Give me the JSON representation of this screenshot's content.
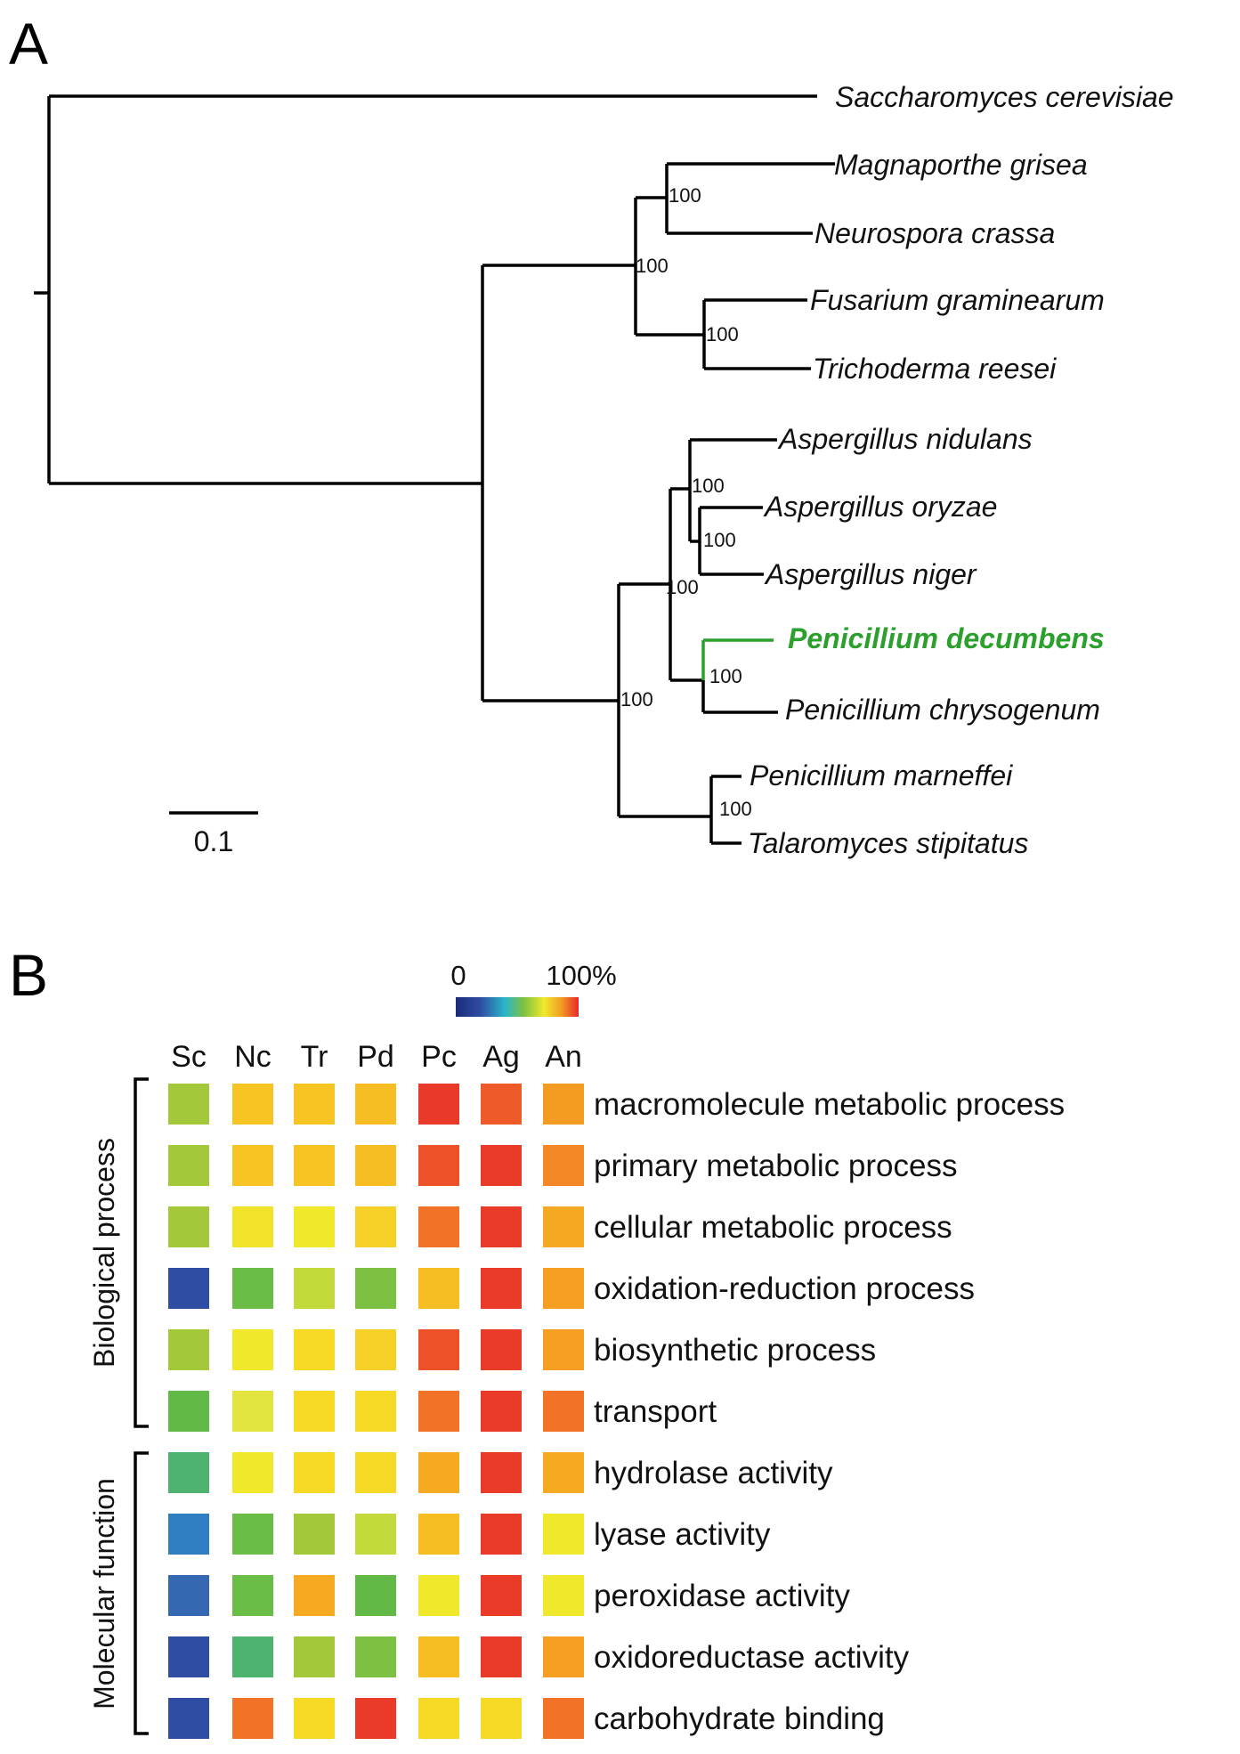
{
  "panels": [
    "A",
    "B"
  ],
  "tree": {
    "taxa": [
      "Saccharomyces cerevisiae",
      "Magnaporthe grisea",
      "Neurospora crassa",
      "Fusarium graminearum",
      "Trichoderma reesei",
      "Aspergillus nidulans",
      "Aspergillus oryzae",
      "Aspergillus niger",
      "Penicillium decumbens",
      "Penicillium chrysogenum",
      "Penicillium marneffei",
      "Talaromyces stipitatus"
    ],
    "highlight_taxon": "Penicillium decumbens",
    "highlight_color": "#2ca02c",
    "bootstrap": [
      "100",
      "100",
      "100",
      "100",
      "100",
      "100",
      "100",
      "100",
      "100"
    ],
    "scale_label": "0.1"
  },
  "heatmap": {
    "colorbar": {
      "min_label": "0",
      "max_label": "100%"
    },
    "columns": [
      "Sc",
      "Nc",
      "Tr",
      "Pd",
      "Pc",
      "Ag",
      "An"
    ],
    "groups": [
      {
        "label": "Biological process",
        "rows": [
          {
            "label": "macromolecule metabolic process",
            "colors": [
              "#a3c93a",
              "#f6c523",
              "#f6c523",
              "#f6be22",
              "#e8392a",
              "#ee5a28",
              "#f39b22"
            ]
          },
          {
            "label": "primary metabolic process",
            "colors": [
              "#a3c93a",
              "#f6c523",
              "#f6c523",
              "#f6be22",
              "#ee5228",
              "#ea3a28",
              "#f48726"
            ]
          },
          {
            "label": "cellular metabolic process",
            "colors": [
              "#a3c93a",
              "#f2e22a",
              "#f0e92b",
              "#f6cf27",
              "#f27227",
              "#ea3a28",
              "#f5a922"
            ]
          },
          {
            "label": "oxidation-reduction process",
            "colors": [
              "#2f4da3",
              "#6abd45",
              "#c4d93b",
              "#7cc142",
              "#f6be22",
              "#ea3a28",
              "#f59e22"
            ]
          },
          {
            "label": "biosynthetic process",
            "colors": [
              "#a3c93a",
              "#f0e92b",
              "#f6d924",
              "#f6cf27",
              "#ee5228",
              "#ea3a28",
              "#f59e22"
            ]
          },
          {
            "label": "transport",
            "colors": [
              "#62b948",
              "#e3e43f",
              "#f6d924",
              "#f6d924",
              "#f27227",
              "#ea3a28",
              "#f27227"
            ]
          }
        ]
      },
      {
        "label": "Molecular function",
        "rows": [
          {
            "label": "hydrolase activity",
            "colors": [
              "#4db36f",
              "#f0e92b",
              "#f6d924",
              "#f6d924",
              "#f5aa22",
              "#ea3a28",
              "#f5aa22"
            ]
          },
          {
            "label": "lyase activity",
            "colors": [
              "#2f7ec2",
              "#6abd45",
              "#a3c93a",
              "#c4d93b",
              "#f6be22",
              "#ea3a28",
              "#f0e92b"
            ]
          },
          {
            "label": "peroxidase activity",
            "colors": [
              "#3568b0",
              "#6abd45",
              "#f5aa22",
              "#62b948",
              "#f0e92b",
              "#ea3a28",
              "#f0e92b"
            ]
          },
          {
            "label": "oxidoreductase activity",
            "colors": [
              "#2f4da3",
              "#4db36f",
              "#a3c93a",
              "#7cc142",
              "#f6be22",
              "#ea3a28",
              "#f59e22"
            ]
          },
          {
            "label": "carbohydrate binding",
            "colors": [
              "#2f4da3",
              "#f27227",
              "#f6d924",
              "#ea3a28",
              "#f6d924",
              "#f6d924",
              "#f27227"
            ]
          }
        ]
      }
    ]
  }
}
